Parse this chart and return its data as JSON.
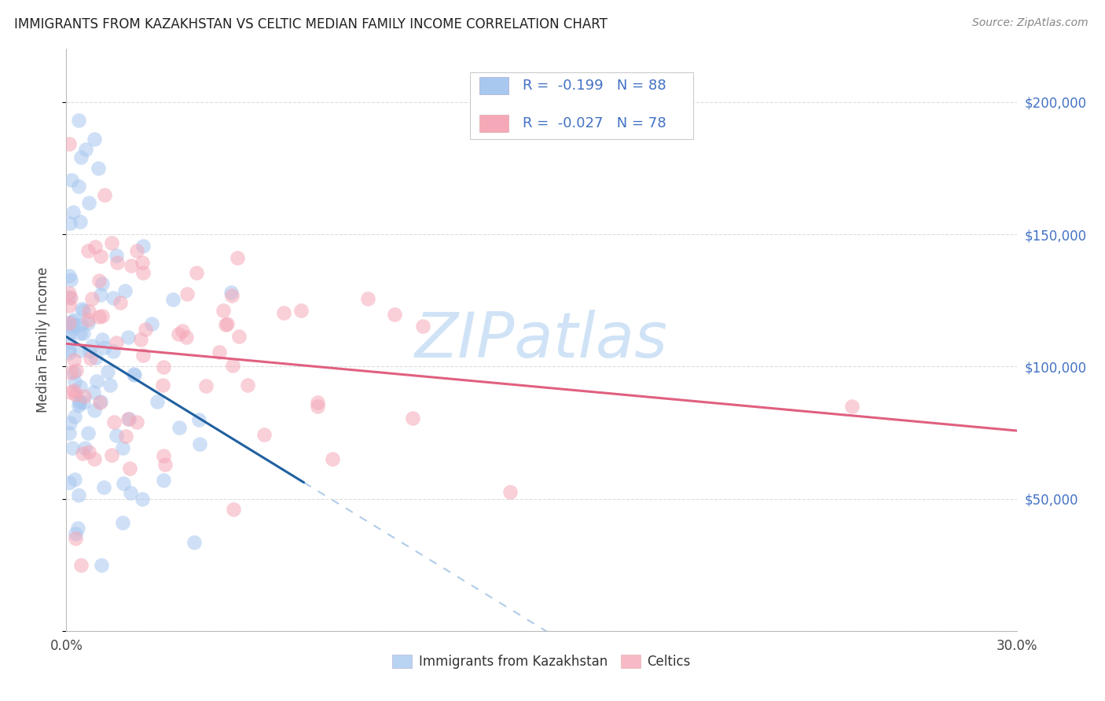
{
  "title": "IMMIGRANTS FROM KAZAKHSTAN VS CELTIC MEDIAN FAMILY INCOME CORRELATION CHART",
  "source": "Source: ZipAtlas.com",
  "ylabel": "Median Family Income",
  "xlim": [
    0.0,
    0.3
  ],
  "ylim": [
    0,
    220000
  ],
  "R_blue": -0.199,
  "N_blue": 88,
  "R_pink": -0.027,
  "N_pink": 78,
  "color_blue": "#A8C8F0",
  "color_pink": "#F5A8B8",
  "line_blue": "#2060A0",
  "line_pink": "#E06080",
  "line_dashed_color": "#B0CCE8",
  "text_blue": "#4472C4",
  "watermark_color": "#C8DFF5",
  "legend_label_blue": "Immigrants from Kazakhstan",
  "legend_label_pink": "Celtics"
}
